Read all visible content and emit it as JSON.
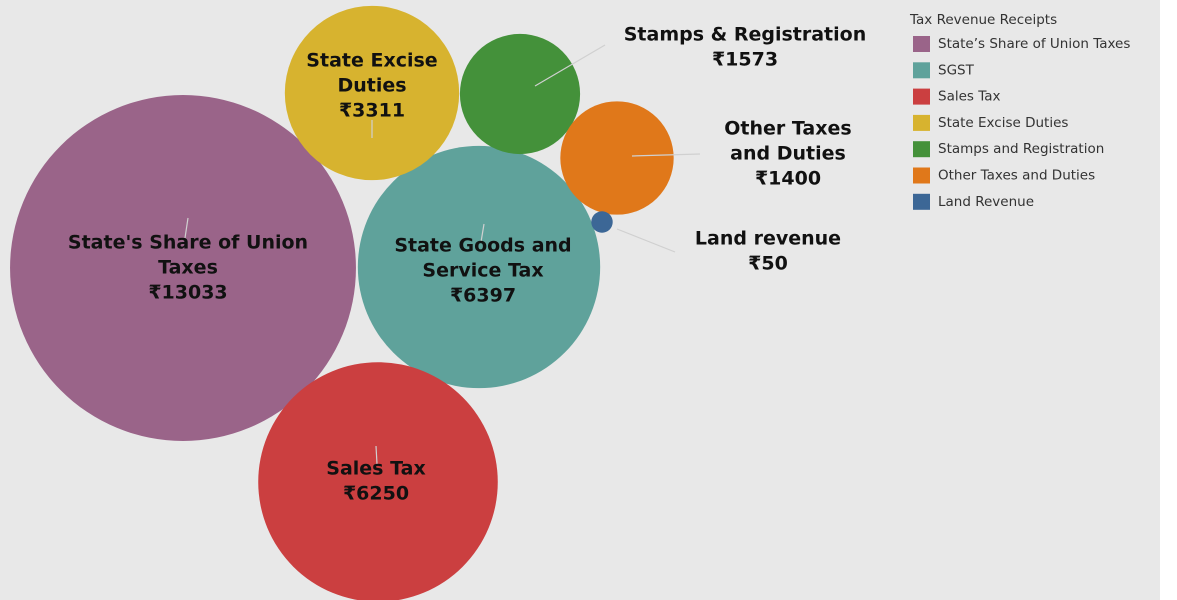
{
  "chart_data": {
    "type": "bubble",
    "legend_title": "Tax Revenue Receipts",
    "categories": [
      "State’s Share of Union Taxes",
      "SGST",
      "Sales Tax",
      "State Excise Duties",
      "Stamps and Registration",
      "Other Taxes and Duties",
      "Land Revenue"
    ],
    "labels": [
      [
        "State's Share of Union",
        "Taxes"
      ],
      [
        "State Goods and",
        "Service Tax"
      ],
      [
        "Sales Tax"
      ],
      [
        "State Excise",
        "Duties"
      ],
      [
        "Stamps & Registration"
      ],
      [
        "Other Taxes",
        "and Duties"
      ],
      [
        "Land revenue"
      ]
    ],
    "values": [
      13033,
      6397,
      6250,
      3311,
      1573,
      1400,
      50
    ],
    "value_labels": [
      "₹13033",
      "₹6397",
      "₹6250",
      "₹3311",
      "₹1573",
      "₹1400",
      "₹50"
    ],
    "colors": [
      "#9a6489",
      "#5fa29b",
      "#cb3f40",
      "#d7b32f",
      "#44913a",
      "#e0781a",
      "#3c6796"
    ]
  }
}
